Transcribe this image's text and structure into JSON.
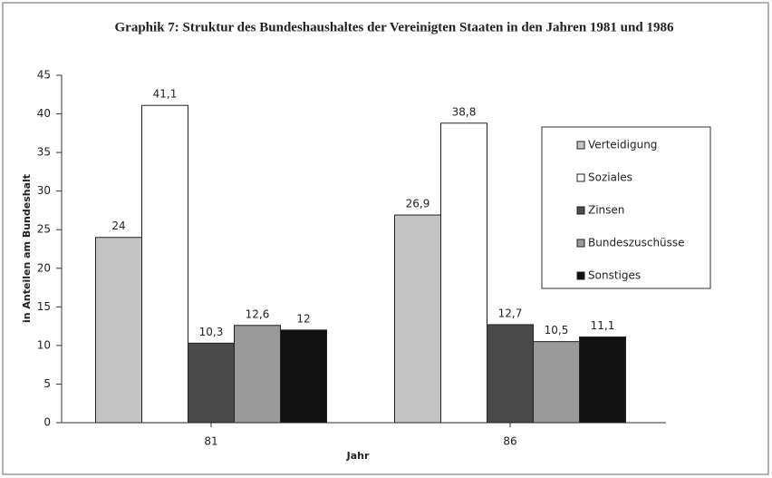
{
  "chart_data": {
    "type": "bar",
    "title": "Graphik 7: Struktur des Bundeshaushaltes der Vereinigten Staaten in den Jahren 1981 und 1986",
    "x_label": "Jahr",
    "y_label": "in Anteilen am Bundeshalt",
    "categories": [
      "81",
      "86"
    ],
    "series": [
      {
        "name": "Verteidigung",
        "color": "#c4c4c4",
        "values": [
          24,
          26.9
        ],
        "value_labels": [
          "24",
          "26,9"
        ]
      },
      {
        "name": "Soziales",
        "color": "#ffffff",
        "values": [
          41.1,
          38.8
        ],
        "value_labels": [
          "41,1",
          "38,8"
        ]
      },
      {
        "name": "Zinsen",
        "color": "#4a4a4a",
        "values": [
          10.3,
          12.7
        ],
        "value_labels": [
          "10,3",
          "12,7"
        ]
      },
      {
        "name": "Bundeszuschüsse",
        "color": "#9a9a9a",
        "values": [
          12.6,
          10.5
        ],
        "value_labels": [
          "12,6",
          "10,5"
        ]
      },
      {
        "name": "Sonstiges",
        "color": "#111111",
        "values": [
          12,
          11.1
        ],
        "value_labels": [
          "12",
          "11,1"
        ]
      }
    ],
    "ylim": [
      0,
      45
    ],
    "yticks": [
      0,
      5,
      10,
      15,
      20,
      25,
      30,
      35,
      40,
      45
    ],
    "legend": "right"
  }
}
